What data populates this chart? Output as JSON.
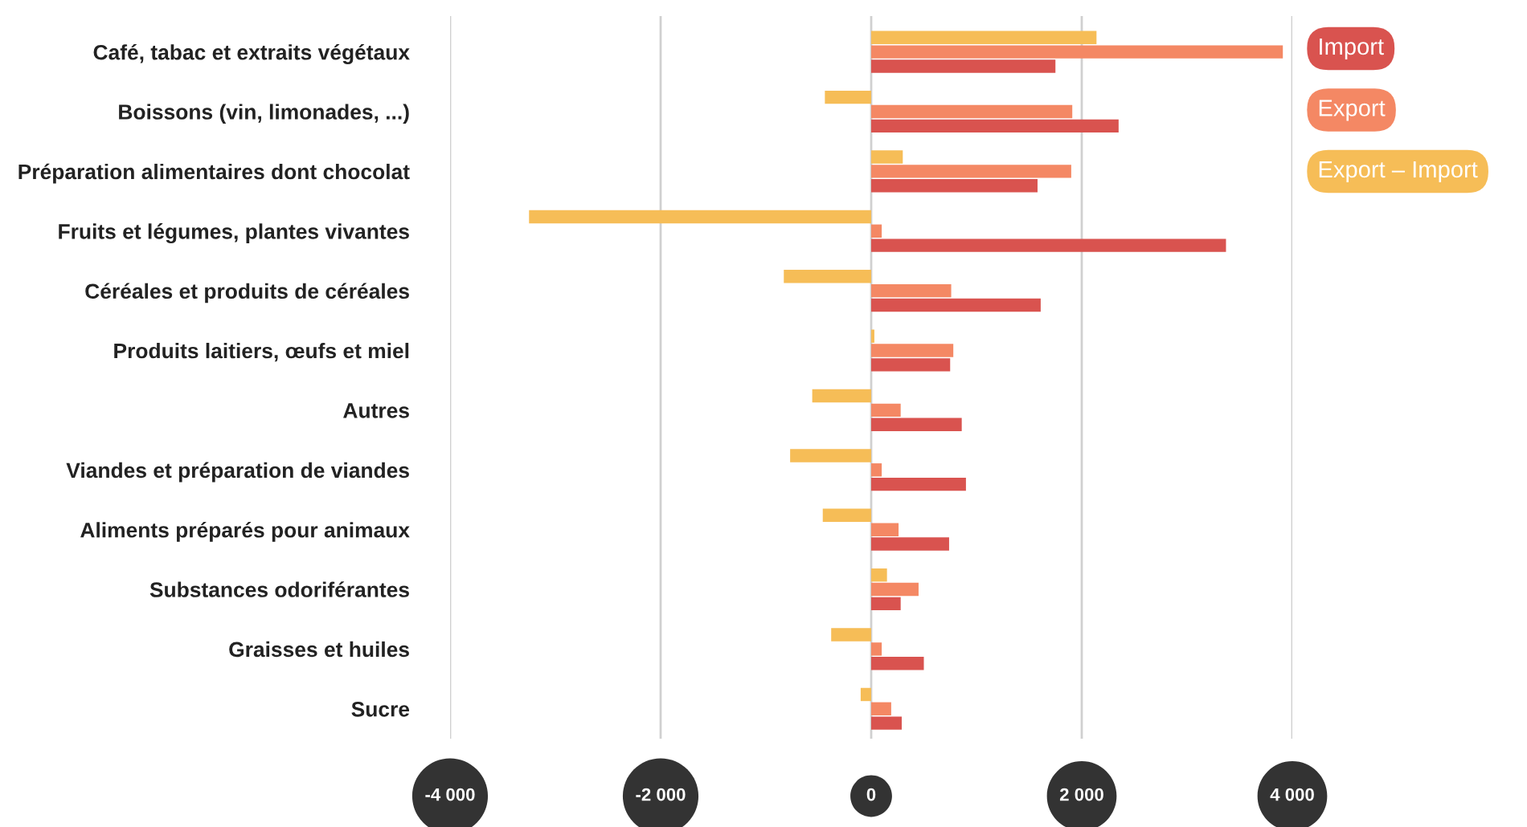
{
  "chart_data": {
    "type": "bar",
    "orientation": "horizontal",
    "categories": [
      "Café, tabac et extraits végétaux",
      "Boissons (vin, limonades, ...)",
      "Préparation alimentaires dont chocolat",
      "Fruits et légumes, plantes vivantes",
      "Céréales et produits de céréales",
      "Produits laitiers, œufs et miel",
      "Autres",
      "Viandes et préparation de viandes",
      "Aliments préparés pour animaux",
      "Substances odoriférantes",
      "Graisses et huiles",
      "Sucre"
    ],
    "series": [
      {
        "name": "Import",
        "color": "#d9534f",
        "values": [
          1750,
          2350,
          1580,
          3370,
          1610,
          750,
          860,
          900,
          740,
          280,
          500,
          290
        ]
      },
      {
        "name": "Export",
        "color": "#f48864",
        "values": [
          3910,
          1910,
          1900,
          100,
          760,
          780,
          280,
          100,
          260,
          450,
          100,
          190
        ]
      },
      {
        "name": "Export – Import",
        "color": "#f6bd57",
        "values": [
          2140,
          -440,
          300,
          -3250,
          -830,
          30,
          -560,
          -770,
          -460,
          150,
          -380,
          -100
        ]
      }
    ],
    "xlim": [
      -4000,
      4000
    ],
    "xticks": [
      {
        "value": -4000,
        "label": "-4 000"
      },
      {
        "value": -2000,
        "label": "-2 000"
      },
      0,
      {
        "value": 2000,
        "label": "2 000"
      },
      {
        "value": 4000,
        "label": "4 000"
      }
    ],
    "grid": "x",
    "legend": "top right"
  }
}
